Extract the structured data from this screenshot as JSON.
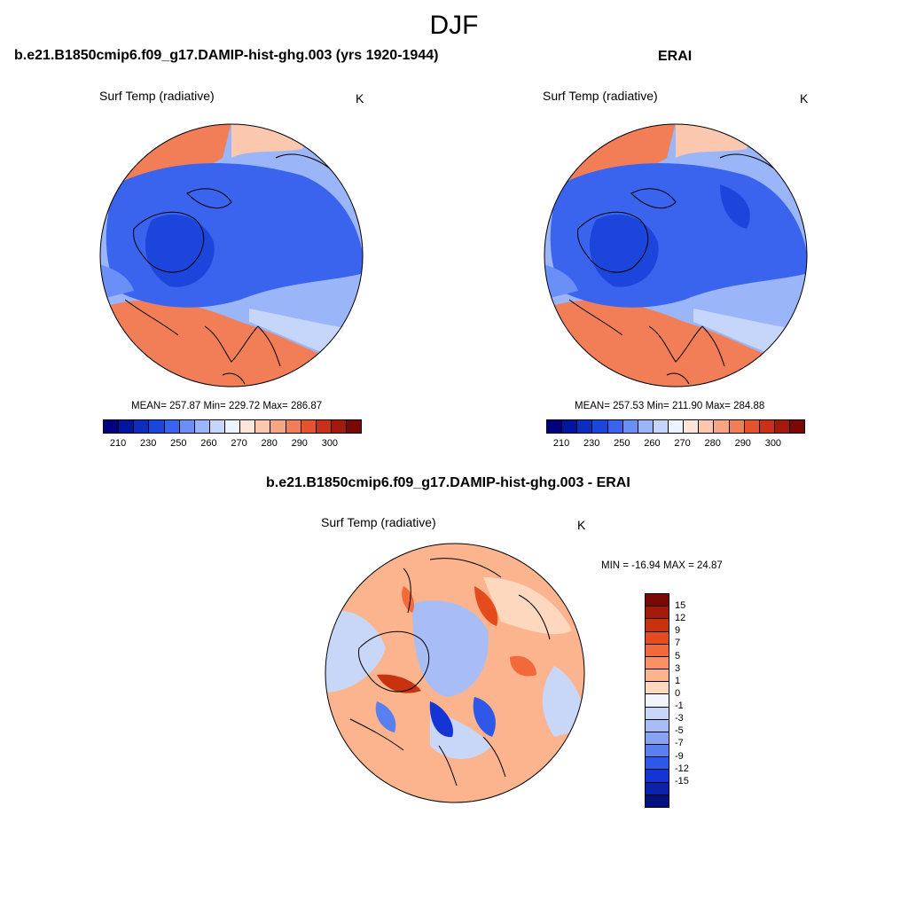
{
  "title": "DJF",
  "panels": [
    {
      "title": "b.e21.B1850cmip6.f09_g17.DAMIP-hist-ghg.003 (yrs 1920-1944)",
      "variable": "Surf Temp (radiative)",
      "units": "K",
      "stats": "MEAN= 257.87  Min= 229.72  Max= 286.87",
      "mean": 257.87,
      "min": 229.72,
      "max": 286.87
    },
    {
      "title": "ERAI",
      "variable": "Surf Temp (radiative)",
      "units": "K",
      "stats": "MEAN= 257.53  Min= 211.90  Max= 284.88",
      "mean": 257.53,
      "min": 211.9,
      "max": 284.88
    }
  ],
  "abs_colorbar": {
    "colors": [
      "#000080",
      "#00169f",
      "#0c2ebf",
      "#1c45dc",
      "#3a63ee",
      "#6a8ff6",
      "#9ab5f8",
      "#c6d6fa",
      "#edf3fd",
      "#fde5d9",
      "#fbc8af",
      "#f7a684",
      "#f27e57",
      "#e4532e",
      "#c8301a",
      "#a2190d",
      "#7a0804"
    ],
    "ticks": [
      "210",
      "230",
      "250",
      "260",
      "270",
      "280",
      "290",
      "300"
    ]
  },
  "diff_panel": {
    "title": "b.e21.B1850cmip6.f09_g17.DAMIP-hist-ghg.003 - ERAI",
    "variable": "Surf Temp (radiative)",
    "units": "K",
    "stats": "MIN = -16.94 MAX =  24.87",
    "min": -16.94,
    "max": 24.87
  },
  "diff_colorbar": {
    "colors": [
      "#7a0804",
      "#a11a0b",
      "#c9320f",
      "#e44c1f",
      "#f36a3a",
      "#f98f62",
      "#fbb48e",
      "#fdd8bf",
      "#f2f4fc",
      "#c8d6f8",
      "#a8bdf5",
      "#87a3f1",
      "#5a7fee",
      "#2f57e8",
      "#1434d4",
      "#0b22aa",
      "#00107f"
    ],
    "ticks": [
      "15",
      "12",
      "9",
      "7",
      "5",
      "3",
      "1",
      "0",
      "-1",
      "-3",
      "-5",
      "-7",
      "-9",
      "-12",
      "-15"
    ]
  }
}
